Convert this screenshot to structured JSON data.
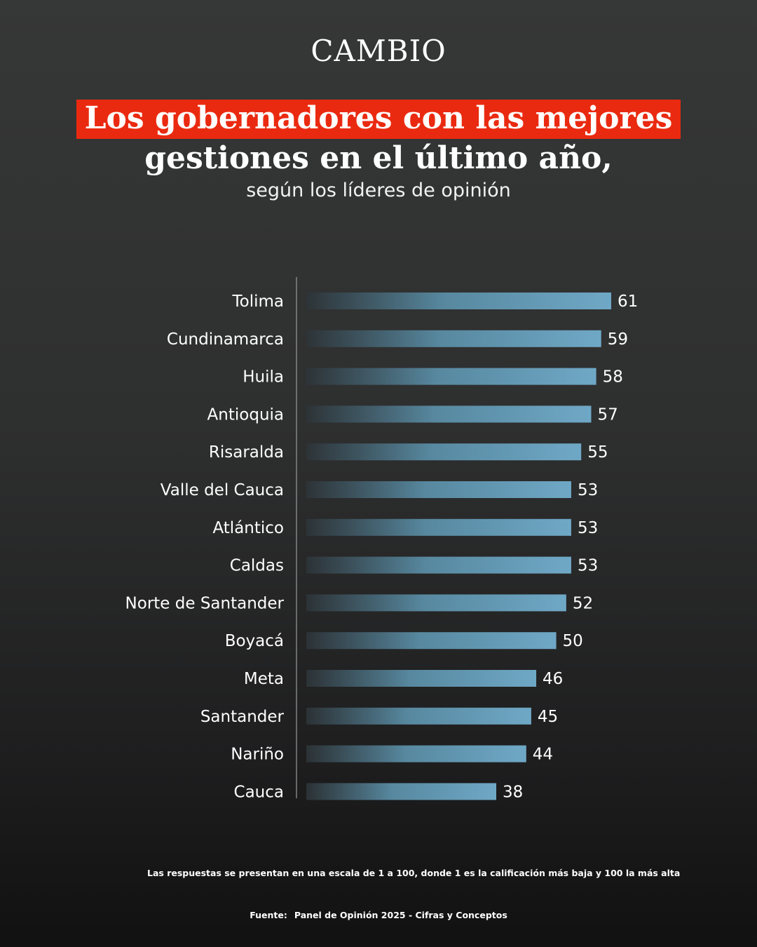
{
  "brand": {
    "logo_text": "CAMBIO"
  },
  "header": {
    "title_line1": "Los gobernadores con las mejores",
    "title_line2": "gestiones en el último año,",
    "subtitle": "según los líderes de opinión"
  },
  "chart_data": {
    "type": "bar",
    "orientation": "horizontal",
    "categories": [
      "Tolima",
      "Cundinamarca",
      "Huila",
      "Antioquia",
      "Risaralda",
      "Valle del Cauca",
      "Atlántico",
      "Caldas",
      "Norte de Santander",
      "Boyacá",
      "Meta",
      "Santander",
      "Nariño",
      "Cauca"
    ],
    "values": [
      61,
      59,
      58,
      57,
      55,
      53,
      53,
      53,
      52,
      50,
      46,
      45,
      44,
      38
    ],
    "xlim": [
      0,
      100
    ],
    "grid": false,
    "bar_color_start": "#2d3438",
    "bar_color_end": "#6fa8c6"
  },
  "footer": {
    "note": "Las respuestas se presentan en una escala de 1 a 100, donde 1 es la calificación más baja y 100 la más alta",
    "source_label": "Fuente:",
    "source_text": "Panel de Opinión 2025 - Cifras y Conceptos"
  }
}
